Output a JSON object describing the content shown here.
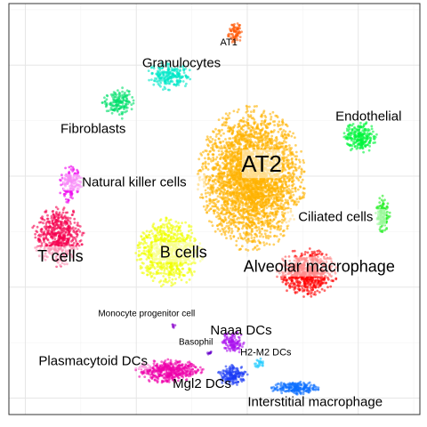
{
  "chart_data": {
    "type": "scatter",
    "title": "",
    "xlabel": "",
    "ylabel": "",
    "xlim": [
      0,
      100
    ],
    "ylim": [
      0,
      100
    ],
    "grid": true,
    "legend": "none",
    "clusters": [
      {
        "label": "AT1",
        "color": "#FF5500",
        "cx": 55,
        "cy": 93,
        "rx": 1.6,
        "ry": 2.4,
        "n": 70,
        "lx": 53.5,
        "ly": 90.5,
        "size": "medium",
        "shade": false
      },
      {
        "label": "Granulocytes",
        "color": "#00E8C8",
        "cx": 39,
        "cy": 82.5,
        "rx": 4.8,
        "ry": 3.2,
        "n": 220,
        "lx": 42,
        "ly": 85.5,
        "size": "large",
        "shade": false
      },
      {
        "label": "Fibroblasts",
        "color": "#00E06A",
        "cx": 26.5,
        "cy": 76,
        "rx": 3.6,
        "ry": 3.6,
        "n": 160,
        "lx": 20.5,
        "ly": 69.5,
        "size": "large",
        "shade": false
      },
      {
        "label": "AT2",
        "color": "#FFB300",
        "cx": 59,
        "cy": 57.5,
        "rx": 11.5,
        "ry": 15.5,
        "n": 3200,
        "lx": 61.5,
        "ly": 61,
        "size": "xlarge",
        "shade": true
      },
      {
        "label": "Endothelial",
        "color": "#00F53C",
        "cx": 85.5,
        "cy": 67.5,
        "rx": 3.6,
        "ry": 3.4,
        "n": 240,
        "lx": 87.5,
        "ly": 72.5,
        "size": "large",
        "shade": false
      },
      {
        "label": "Natural killer cells",
        "color": "#EE00EE",
        "cx": 15,
        "cy": 56,
        "rx": 2.6,
        "ry": 4.2,
        "n": 170,
        "lx": 30.5,
        "ly": 56.5,
        "size": "large",
        "shade": true
      },
      {
        "label": "Ciliated cells",
        "color": "#22EE22",
        "cx": 91,
        "cy": 48.5,
        "rx": 1.6,
        "ry": 4.2,
        "n": 140,
        "lx": 79.5,
        "ly": 48,
        "size": "large",
        "shade": true
      },
      {
        "label": "T cells",
        "color": "#F5004E",
        "cx": 12,
        "cy": 43.5,
        "rx": 5.6,
        "ry": 6.6,
        "n": 520,
        "lx": 12.5,
        "ly": 38.5,
        "size": "xlarge",
        "shade": true
      },
      {
        "label": "B cells",
        "color": "#F0FF00",
        "cx": 39,
        "cy": 39.5,
        "rx": 7.4,
        "ry": 7.4,
        "n": 820,
        "lx": 42.5,
        "ly": 39.5,
        "size": "xlarge",
        "shade": true
      },
      {
        "label": "Alveolar macrophage",
        "color": "#FF0000",
        "cx": 72.5,
        "cy": 34.5,
        "rx": 6.4,
        "ry": 5.2,
        "n": 650,
        "lx": 75.5,
        "ly": 36,
        "size": "xlarge",
        "shade": true
      },
      {
        "label": "Monocyte progenitor cell",
        "color": "#8800CC",
        "cx": 40,
        "cy": 21.8,
        "rx": 0.5,
        "ry": 0.6,
        "n": 6,
        "lx": 33.5,
        "ly": 24.5,
        "size": "small",
        "shade": false
      },
      {
        "label": "Naaa DCs",
        "color": "#AA10EE",
        "cx": 54.5,
        "cy": 17.5,
        "rx": 2.6,
        "ry": 2.4,
        "n": 120,
        "lx": 56.5,
        "ly": 20.5,
        "size": "large",
        "shade": false
      },
      {
        "label": "Basophil",
        "color": "#6600CC",
        "cx": 49,
        "cy": 15,
        "rx": 0.6,
        "ry": 0.6,
        "n": 8,
        "lx": 45.5,
        "ly": 17.5,
        "size": "small",
        "shade": false
      },
      {
        "label": "H2-M2 DCs",
        "color": "#22CCFF",
        "cx": 61,
        "cy": 12.5,
        "rx": 1.2,
        "ry": 1.4,
        "n": 25,
        "lx": 62.5,
        "ly": 15,
        "size": "medium",
        "shade": false
      },
      {
        "label": "Plasmacytoid DCs",
        "color": "#EE00AA",
        "cx": 39,
        "cy": 10.5,
        "rx": 7.5,
        "ry": 2.6,
        "n": 450,
        "lx": 20.5,
        "ly": 13,
        "size": "large",
        "shade": true
      },
      {
        "label": "Mgl2 DCs",
        "color": "#1A3BF5",
        "cx": 54.5,
        "cy": 9.5,
        "rx": 3.2,
        "ry": 2.4,
        "n": 170,
        "lx": 47,
        "ly": 7.5,
        "size": "large",
        "shade": false
      },
      {
        "label": "Interstitial macrophage",
        "color": "#0A6EFF",
        "cx": 69.5,
        "cy": 6.5,
        "rx": 5.6,
        "ry": 1.4,
        "n": 200,
        "lx": 74.5,
        "ly": 3,
        "size": "large",
        "shade": false
      }
    ]
  }
}
